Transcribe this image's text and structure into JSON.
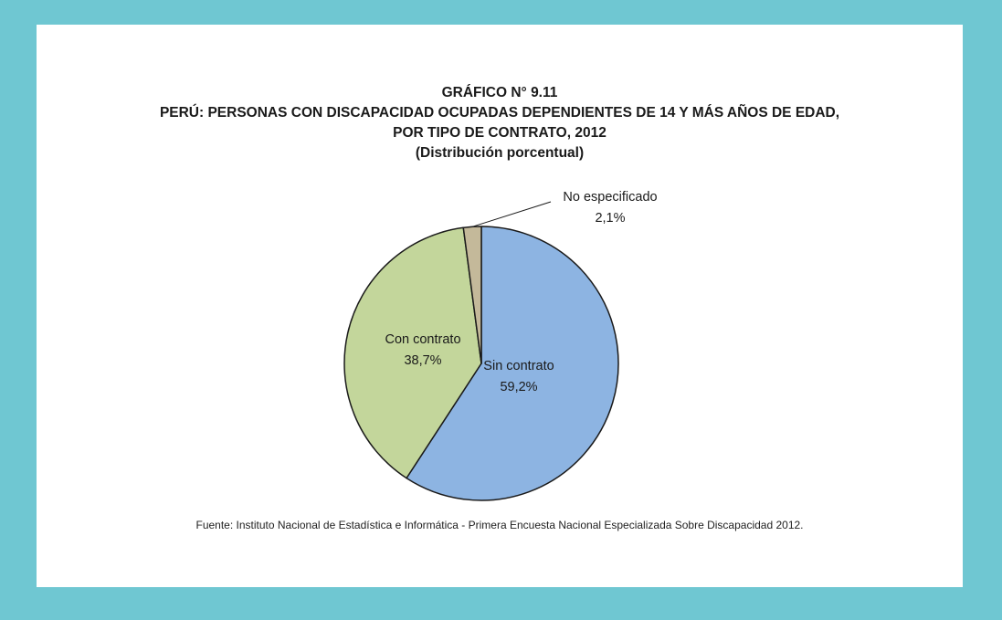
{
  "header": {
    "title_line1": "GRÁFICO N° 9.11",
    "title_line2": "PERÚ: PERSONAS CON DISCAPACIDAD OCUPADAS DEPENDIENTES DE 14 Y MÁS AÑOS DE EDAD,",
    "title_line3": "POR TIPO DE CONTRATO, 2012",
    "subtitle": "(Distribución porcentual)"
  },
  "source": "Fuente: Instituto Nacional de Estadística e Informática - Primera Encuesta Nacional Especializada Sobre Discapacidad 2012.",
  "colors": {
    "background": "#6fc7d2",
    "card": "#ffffff",
    "sin_contrato": "#8db4e2",
    "con_contrato": "#c3d69b",
    "no_especificado": "#c4b99a",
    "outline": "#1a1a1a"
  },
  "chart_data": {
    "type": "pie",
    "title": "GRÁFICO N° 9.11 PERÚ: PERSONAS CON DISCAPACIDAD OCUPADAS DEPENDIENTES DE 14 Y MÁS AÑOS DE EDAD, POR TIPO DE CONTRATO, 2012",
    "subtitle": "(Distribución porcentual)",
    "slices": [
      {
        "label": "Sin contrato",
        "value": 59.2,
        "value_label": "59,2%",
        "color": "#8db4e2"
      },
      {
        "label": "Con contrato",
        "value": 38.7,
        "value_label": "38,7%",
        "color": "#c3d69b"
      },
      {
        "label": "No especificado",
        "value": 2.1,
        "value_label": "2,1%",
        "color": "#c4b99a"
      }
    ]
  }
}
